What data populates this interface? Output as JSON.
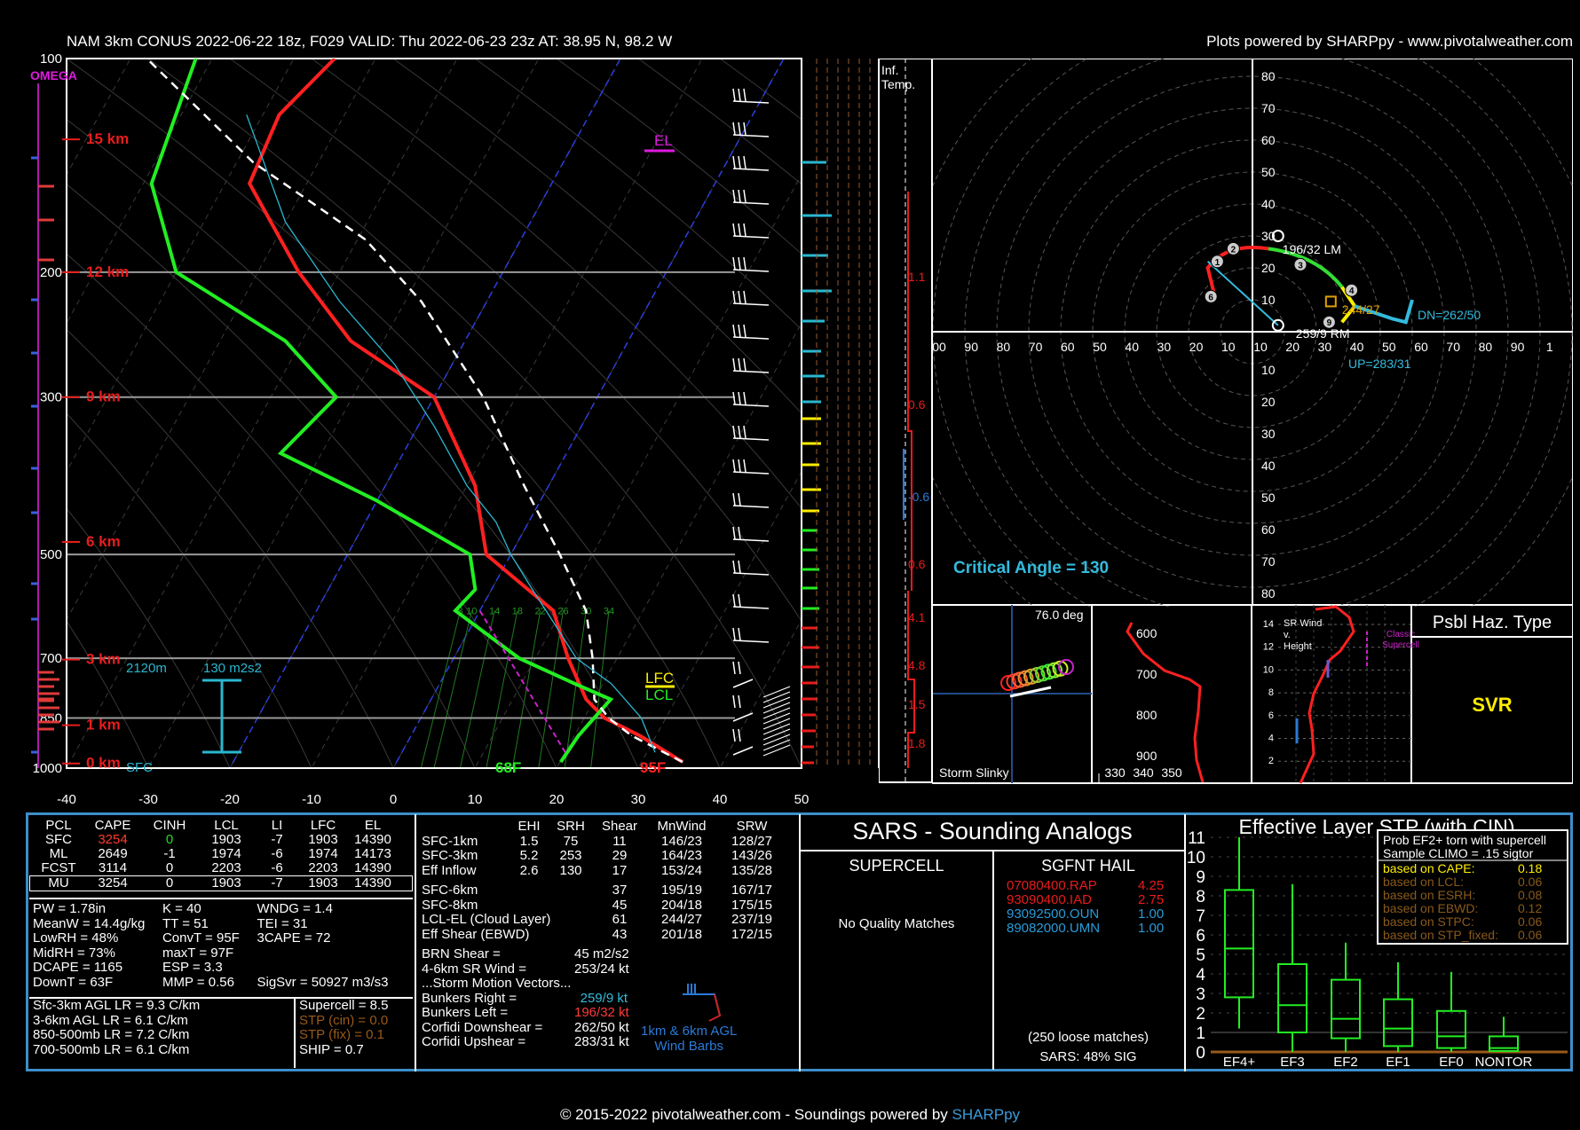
{
  "header": {
    "title": "NAM 3km CONUS 2022-06-22 18z, F029  VALID: Thu 2022-06-23 23z  AT: 38.95 N, 98.2 W",
    "credit": "Plots powered by SHARPpy - www.pivotalweather.com"
  },
  "footer": {
    "text": "© 2015-2022 pivotalweather.com - Soundings powered by ",
    "link": "SHARPpy"
  },
  "skewt": {
    "omega_label": "OMEGA",
    "pressure_labels": [
      "100",
      "200",
      "300",
      "500",
      "700",
      "850",
      "1000"
    ],
    "height_labels": [
      "15 km",
      "12 km",
      "9 km",
      "6 km",
      "3 km",
      "1 km",
      "0 km"
    ],
    "x_ticks": [
      "-40",
      "-30",
      "-20",
      "-10",
      "0",
      "10",
      "20",
      "30",
      "40",
      "50"
    ],
    "el_label": "EL",
    "lfc_label": "LFC",
    "lcl_label": "LCL",
    "sfc_label": "SFC",
    "sfc_temp": "95F",
    "sfc_dew": "68F",
    "eff_inflow_depth": "2120m",
    "eff_srh": "130 m2s2",
    "mixing_ratio_labels": [
      "8",
      "10",
      "14",
      "18",
      "22",
      "26",
      "30",
      "34"
    ]
  },
  "inferred_temp": {
    "label": "Inf.\nTemp.",
    "values": [
      "1.1",
      "0.6",
      "-0.6",
      "0.6",
      "4.1",
      "4.8",
      "1.5",
      "1.8"
    ]
  },
  "hodograph": {
    "rings": [
      "10",
      "20",
      "30",
      "40",
      "50",
      "60",
      "70",
      "80"
    ],
    "x_labels": [
      "00",
      "90",
      "80",
      "70",
      "60",
      "50",
      "40",
      "30",
      "20",
      "10",
      "10",
      "20",
      "30",
      "40",
      "50",
      "60",
      "70",
      "80",
      "90",
      "1"
    ],
    "lm": "196/32 LM",
    "rm": "259/9 RM",
    "dn": "DN=262/50",
    "up": "UP=283/31",
    "mean": "244/27",
    "critical_angle": "Critical Angle = 130",
    "points": [
      "1",
      "2",
      "3",
      "4",
      "6",
      "9"
    ]
  },
  "slinky": {
    "angle": "76.0 deg",
    "label": "Storm Slinky"
  },
  "theta_panel": {
    "y_labels": [
      "600",
      "700",
      "800",
      "900"
    ],
    "x_labels": [
      "330",
      "340",
      "350"
    ]
  },
  "srwind_panel": {
    "title": "SR Wind\nv.\nHeight",
    "y_labels": [
      "14",
      "12",
      "10",
      "8",
      "6",
      "4",
      "2"
    ],
    "annotation": "Classic\nSupercell"
  },
  "haz_type": {
    "title": "Psbl Haz. Type",
    "value": "SVR"
  },
  "parcel_table": {
    "headers": [
      "PCL",
      "CAPE",
      "CINH",
      "LCL",
      "LI",
      "LFC",
      "EL"
    ],
    "rows": [
      [
        "SFC",
        "3254",
        "0",
        "1903",
        "-7",
        "1903",
        "14390"
      ],
      [
        "ML",
        "2649",
        "-1",
        "1974",
        "-6",
        "1974",
        "14173"
      ],
      [
        "FCST",
        "3114",
        "0",
        "2203",
        "-6",
        "2203",
        "14390"
      ],
      [
        "MU",
        "3254",
        "0",
        "1903",
        "-7",
        "1903",
        "14390"
      ]
    ]
  },
  "indices": [
    [
      "PW = 1.78in",
      "K = 40",
      "WNDG = 1.4"
    ],
    [
      "MeanW = 14.4g/kg",
      "TT = 51",
      "TEI = 31"
    ],
    [
      "LowRH = 48%",
      "ConvT = 95F",
      "3CAPE = 72"
    ],
    [
      "MidRH = 73%",
      "maxT = 97F",
      ""
    ],
    [
      "DCAPE = 1165",
      "ESP = 3.3",
      ""
    ],
    [
      "DownT = 63F",
      "MMP = 0.56",
      "SigSvr = 50927 m3/s3"
    ]
  ],
  "lapse_rates": [
    "Sfc-3km AGL LR = 9.3 C/km",
    "3-6km AGL LR = 6.1 C/km",
    "850-500mb LR = 7.2 C/km",
    "700-500mb LR = 6.1 C/km"
  ],
  "composites": [
    "Supercell = 8.5",
    "STP (cin) = 0.0",
    "STP (fix) = 0.1",
    "SHIP = 0.7"
  ],
  "kinematics": {
    "headers": [
      "EHI",
      "SRH",
      "Shear",
      "MnWind",
      "SRW"
    ],
    "rows": [
      [
        "SFC-1km",
        "1.5",
        "75",
        "11",
        "146/23",
        "128/27"
      ],
      [
        "SFC-3km",
        "5.2",
        "253",
        "29",
        "164/23",
        "143/26"
      ],
      [
        "Eff Inflow",
        "2.6",
        "130",
        "17",
        "153/24",
        "135/28"
      ],
      [
        "SFC-6km",
        "",
        "",
        "37",
        "195/19",
        "167/17"
      ],
      [
        "SFC-8km",
        "",
        "",
        "45",
        "204/18",
        "175/15"
      ],
      [
        "LCL-EL (Cloud Layer)",
        "",
        "",
        "61",
        "244/27",
        "237/19"
      ],
      [
        "Eff Shear (EBWD)",
        "",
        "",
        "43",
        "201/18",
        "172/15"
      ]
    ],
    "brn_shear": [
      "BRN Shear =",
      "45 m2/s2"
    ],
    "sr_wind_46": [
      "4-6km SR Wind =",
      "253/24 kt"
    ],
    "storm_motion_title": "...Storm Motion Vectors...",
    "storm_motion": [
      [
        "Bunkers Right =",
        "259/9 kt"
      ],
      [
        "Bunkers Left =",
        "196/32 kt"
      ],
      [
        "Corfidi Downshear =",
        "262/50 kt"
      ],
      [
        "Corfidi Upshear =",
        "283/31 kt"
      ]
    ],
    "wind_barb_label": "1km & 6km AGL\nWind Barbs"
  },
  "sars": {
    "title": "SARS - Sounding Analogs",
    "supercell_title": "SUPERCELL",
    "hail_title": "SGFNT HAIL",
    "supercell_text": "No Quality Matches",
    "hail_matches": [
      [
        "07080400.RAP",
        "4.25"
      ],
      [
        "93090400.IAD",
        "2.75"
      ],
      [
        "93092500.OUN",
        "1.00"
      ],
      [
        "89082000.UMN",
        "1.00"
      ]
    ],
    "loose": "(250 loose matches)",
    "sig": "SARS: 48% SIG"
  },
  "stp": {
    "title": "Effective Layer STP (with CIN)",
    "y_labels": [
      "11",
      "10",
      "9",
      "8",
      "7",
      "6",
      "5",
      "4",
      "3",
      "2",
      "1",
      "0"
    ],
    "categories": [
      "EF4+",
      "EF3",
      "EF2",
      "EF1",
      "EF0",
      "NONTOR"
    ],
    "legend_title": [
      "Prob EF2+ torn with supercell",
      "Sample CLIMO = .15 sigtor"
    ],
    "legend_rows": [
      [
        "based on CAPE:",
        "0.18"
      ],
      [
        "based on LCL:",
        "0.06"
      ],
      [
        "based on ESRH:",
        "0.08"
      ],
      [
        "based on EBWD:",
        "0.12"
      ],
      [
        "based on STPC:",
        "0.06"
      ],
      [
        "based on STP_fixed:",
        "0.06"
      ]
    ]
  },
  "chart_data": [
    {
      "type": "line",
      "title": "NAM 3km CONUS 2022-06-22 18z, F029  VALID: Thu 2022-06-23 23z  AT: 38.95 N, 98.2 W",
      "xlabel": "",
      "ylabel": "",
      "xlim": [
        -40,
        50
      ],
      "ylim": [
        1000,
        100
      ],
      "y_scale": "log",
      "skew": true,
      "series": [
        {
          "name": "",
          "color": "#ff2020",
          "points": [
            [
              35.0,
              980
            ],
            [
              28.0,
              900
            ],
            [
              22.5,
              850
            ],
            [
              19.0,
              800
            ],
            [
              14.0,
              700
            ],
            [
              9.0,
              600
            ],
            [
              -3.0,
              500
            ],
            [
              -9.0,
              400
            ],
            [
              -20.0,
              300
            ],
            [
              -34.0,
              250
            ],
            [
              -45.0,
              200
            ],
            [
              -57.0,
              150
            ],
            [
              -58.0,
              120
            ],
            [
              -55.0,
              100
            ]
          ]
        },
        {
          "name": "",
          "color": "#22ee22",
          "points": [
            [
              20.1,
              980
            ],
            [
              20.5,
              900
            ],
            [
              22.0,
              800
            ],
            [
              16.5,
              760
            ],
            [
              8.0,
              700
            ],
            [
              -3.0,
              600
            ],
            [
              -2.0,
              560
            ],
            [
              -5.0,
              500
            ],
            [
              -20.0,
              420
            ],
            [
              -35.0,
              360
            ],
            [
              -32.0,
              300
            ],
            [
              -42.0,
              250
            ],
            [
              -60.0,
              200
            ],
            [
              -69.0,
              150
            ],
            [
              -72.0,
              100
            ]
          ]
        },
        {
          "name": "",
          "color": "#ffffff",
          "dashed": true,
          "points": [
            [
              35.0,
              980
            ],
            [
              27.0,
              900
            ],
            [
              23.0,
              850
            ],
            [
              20.0,
              800
            ],
            [
              17.0,
              700
            ],
            [
              13.0,
              600
            ],
            [
              6.0,
              500
            ],
            [
              -3.0,
              400
            ],
            [
              -14.0,
              300
            ],
            [
              -28.0,
              220
            ],
            [
              -39.0,
              180
            ],
            [
              -58.0,
              140
            ],
            [
              -78.0,
              100
            ]
          ]
        }
      ]
    },
    {
      "type": "scatter",
      "title": "",
      "series": [
        {
          "name": "",
          "color": "#ff2020",
          "points": [
            [
              -9,
              23
            ],
            [
              -7,
              26
            ],
            [
              -4,
              29
            ]
          ]
        },
        {
          "name": "",
          "color": "#33dd33",
          "points": [
            [
              10,
              26
            ],
            [
              18,
              24
            ],
            [
              24,
              20
            ],
            [
              27,
              14
            ]
          ]
        },
        {
          "name": "",
          "color": "#ffee00",
          "points": [
            [
              30,
              10
            ],
            [
              32,
              6
            ],
            [
              30,
              3
            ]
          ]
        },
        {
          "name": "",
          "color": "#33bbdd",
          "points": [
            [
              37,
              6
            ],
            [
              43,
              5
            ],
            [
              48,
              3
            ],
            [
              49,
              9
            ]
          ]
        }
      ]
    },
    {
      "type": "bar",
      "title": "Effective Layer STP (with CIN)",
      "categories": [
        "EF4+",
        "EF3",
        "EF2",
        "EF1",
        "EF0",
        "NONTOR"
      ],
      "series": [
        {
          "name": "",
          "values": [
            [
              1.2,
              2.8,
              5.3,
              8.3,
              11.0
            ],
            [
              0.0,
              1.0,
              2.4,
              4.5,
              8.6
            ],
            [
              0.0,
              0.7,
              1.7,
              3.7,
              5.6
            ],
            [
              0.0,
              0.3,
              1.2,
              2.7,
              4.6
            ],
            [
              0.0,
              0.2,
              0.8,
              2.1,
              4.1
            ],
            [
              0.0,
              0.05,
              0.2,
              0.8,
              1.8
            ]
          ]
        }
      ],
      "ylim": [
        0,
        11
      ]
    }
  ]
}
